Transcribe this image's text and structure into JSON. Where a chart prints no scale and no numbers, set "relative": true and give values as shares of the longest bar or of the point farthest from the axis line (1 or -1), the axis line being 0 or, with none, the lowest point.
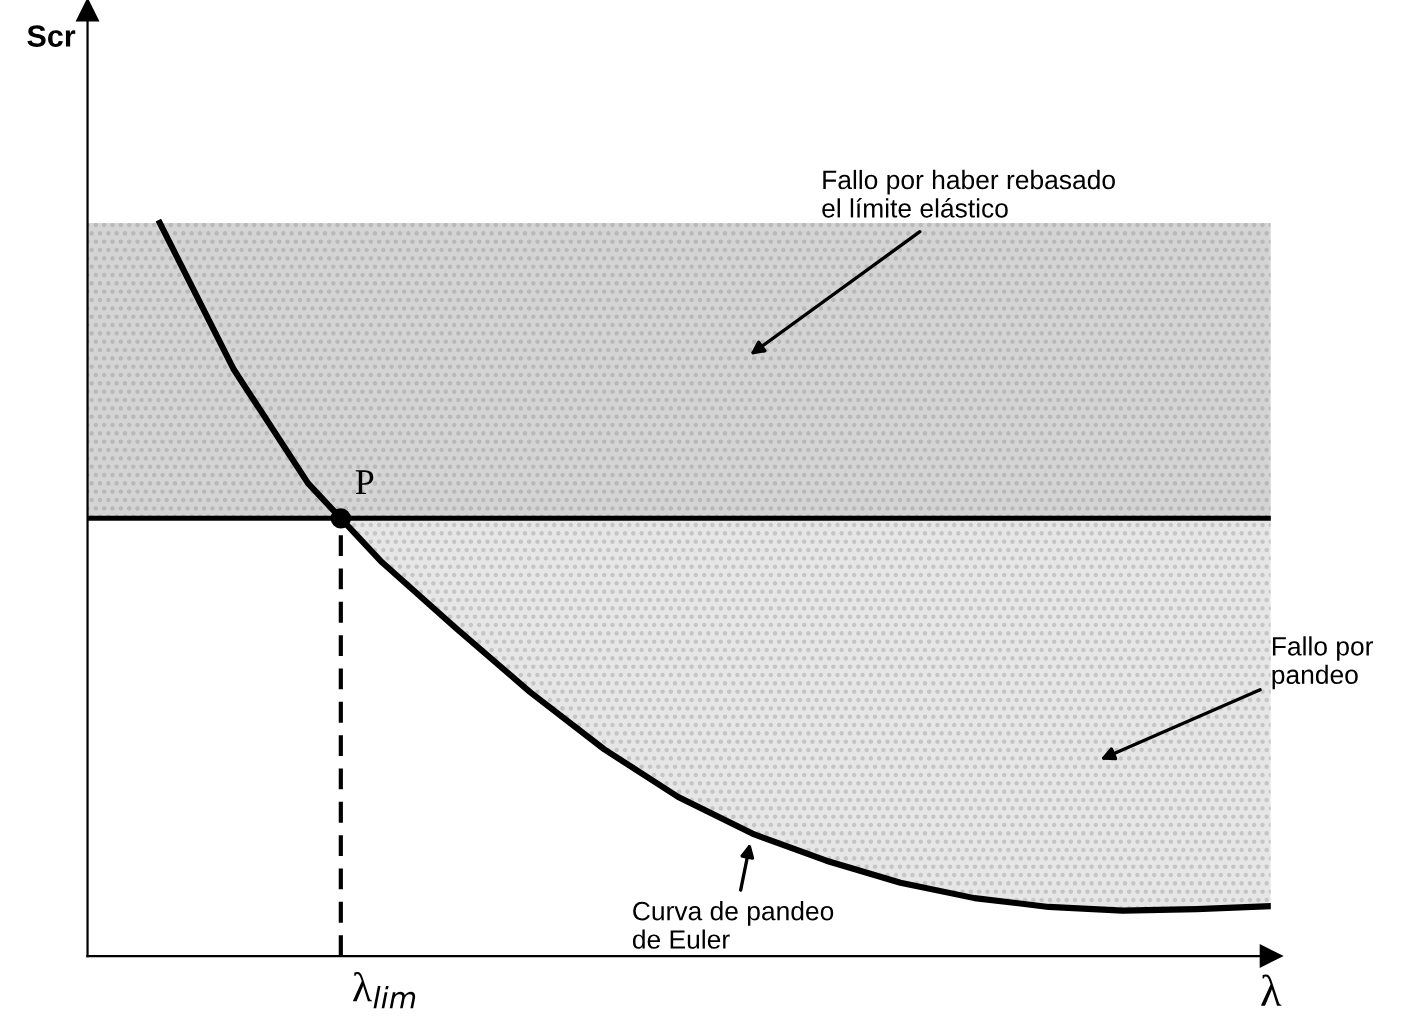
{
  "chart_data": {
    "type": "line",
    "relative": true,
    "xlabel": "λ",
    "categories": [
      null,
      null,
      null,
      null,
      null,
      null,
      null,
      null,
      null,
      null,
      null,
      null,
      null,
      null,
      null,
      null
    ],
    "series": [
      {
        "color": "#000000",
        "values": [
          1.0,
          0.8,
          0.645,
          0.537,
          0.447,
          0.36,
          0.282,
          0.217,
          0.167,
          0.13,
          0.1,
          0.079,
          0.067,
          0.062,
          0.064,
          0.068
        ]
      }
    ],
    "ref_lines": [
      {
        "axis": "y",
        "value": 0.597,
        "color": "#000000"
      }
    ],
    "bands": [
      {
        "axis": "y",
        "from": 0.597,
        "to": 1.0,
        "color": "#d4d4d4"
      }
    ],
    "annotations": [
      "Fallo por haber rebasado\nel límite elástico",
      "Fallo por\npandeo",
      "Curva de pandeo\nde Euler",
      "P",
      "λ$_{lim}$",
      "Scr"
    ]
  }
}
